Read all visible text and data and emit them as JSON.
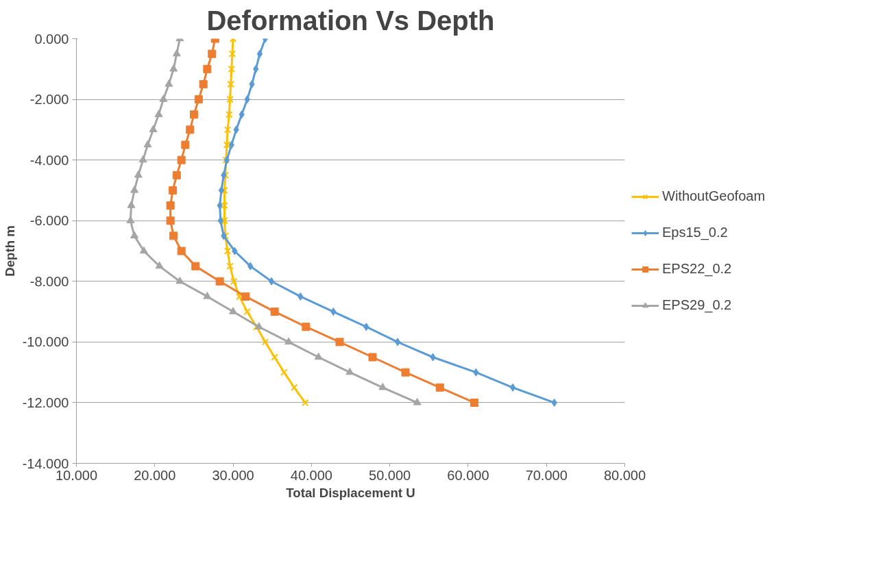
{
  "chart_data": {
    "type": "line",
    "title": "Deformation Vs Depth",
    "xlabel": "Total Displacement U",
    "ylabel": "Depth m",
    "xlim": [
      10,
      80
    ],
    "ylim": [
      -14,
      0
    ],
    "xticks": [
      {
        "value": 10,
        "label": "10.000"
      },
      {
        "value": 20,
        "label": "20.000"
      },
      {
        "value": 30,
        "label": "30.000"
      },
      {
        "value": 40,
        "label": "40.000"
      },
      {
        "value": 50,
        "label": "50.000"
      },
      {
        "value": 60,
        "label": "60.000"
      },
      {
        "value": 70,
        "label": "70.000"
      },
      {
        "value": 80,
        "label": "80.000"
      }
    ],
    "yticks": [
      {
        "value": -14,
        "label": "-14.000"
      },
      {
        "value": -12,
        "label": "-12.000"
      },
      {
        "value": -10,
        "label": "-10.000"
      },
      {
        "value": -8,
        "label": "-8.000"
      },
      {
        "value": -6,
        "label": "-6.000"
      },
      {
        "value": -4,
        "label": "-4.000"
      },
      {
        "value": -2,
        "label": "-2.000"
      },
      {
        "value": 0,
        "label": "0.000"
      }
    ],
    "grid": "y",
    "legend": "right",
    "orientation": "horizontal",
    "series": [
      {
        "name": "WithoutGeofoam",
        "color": "#ffc000",
        "marker": "cross",
        "values": [
          30.0,
          29.9,
          29.8,
          29.7,
          29.6,
          29.5,
          29.3,
          29.2,
          29.1,
          29.0,
          28.9,
          28.9,
          28.9,
          29.0,
          29.3,
          29.6,
          30.1,
          30.8,
          31.8,
          33.0,
          34.1,
          35.3,
          36.5,
          37.8,
          39.2
        ],
        "x": [
          0,
          -0.5,
          -1,
          -1.5,
          -2,
          -2.5,
          -3,
          -3.5,
          -4,
          -4.5,
          -5,
          -5.5,
          -6,
          -6.5,
          -7,
          -7.5,
          -8,
          -8.5,
          -9,
          -9.5,
          -10,
          -10.5,
          -11,
          -11.5,
          -12
        ]
      },
      {
        "name": "Eps15_0.2",
        "color": "#5b9bd5",
        "marker": "diamond",
        "values": [
          34.1,
          33.4,
          32.9,
          32.4,
          31.8,
          31.1,
          30.4,
          29.8,
          29.2,
          28.8,
          28.5,
          28.3,
          28.4,
          28.8,
          30.2,
          32.2,
          34.9,
          38.6,
          42.8,
          47.0,
          51.0,
          55.5,
          61.0,
          65.7,
          71.0
        ],
        "x": [
          0,
          -0.5,
          -1,
          -1.5,
          -2,
          -2.5,
          -3,
          -3.5,
          -4,
          -4.5,
          -5,
          -5.5,
          -6,
          -6.5,
          -7,
          -7.5,
          -8,
          -8.5,
          -9,
          -9.5,
          -10,
          -10.5,
          -11,
          -11.5,
          -12
        ]
      },
      {
        "name": "EPS22_0.2",
        "color": "#ed7d31",
        "marker": "square",
        "values": [
          27.7,
          27.3,
          26.7,
          26.2,
          25.6,
          25.0,
          24.5,
          23.9,
          23.4,
          22.8,
          22.3,
          22.0,
          22.0,
          22.4,
          23.4,
          25.2,
          28.3,
          31.6,
          35.3,
          39.3,
          43.6,
          47.8,
          52.0,
          56.4,
          60.8
        ],
        "x": [
          0,
          -0.5,
          -1,
          -1.5,
          -2,
          -2.5,
          -3,
          -3.5,
          -4,
          -4.5,
          -5,
          -5.5,
          -6,
          -6.5,
          -7,
          -7.5,
          -8,
          -8.5,
          -9,
          -9.5,
          -10,
          -10.5,
          -11,
          -11.5,
          -12
        ]
      },
      {
        "name": "EPS29_0.2",
        "color": "#a5a5a5",
        "marker": "triangle",
        "values": [
          23.2,
          22.8,
          22.4,
          21.8,
          21.1,
          20.5,
          19.8,
          19.1,
          18.5,
          17.9,
          17.4,
          17.0,
          16.9,
          17.4,
          18.6,
          20.6,
          23.2,
          26.7,
          30.0,
          33.3,
          37.1,
          40.9,
          44.9,
          49.1,
          53.5
        ],
        "x": [
          0,
          -0.5,
          -1,
          -1.5,
          -2,
          -2.5,
          -3,
          -3.5,
          -4,
          -4.5,
          -5,
          -5.5,
          -6,
          -6.5,
          -7,
          -7.5,
          -8,
          -8.5,
          -9,
          -9.5,
          -10,
          -10.5,
          -11,
          -11.5,
          -12
        ]
      }
    ]
  }
}
